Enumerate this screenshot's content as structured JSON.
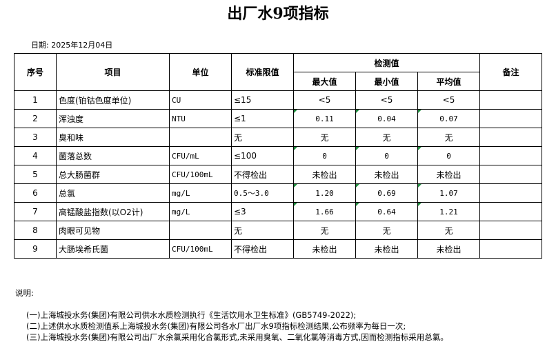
{
  "header": {
    "title": "出厂水9项指标",
    "date": "日期: 2025年12月04日"
  },
  "table": {
    "columns": {
      "no": "序号",
      "item": "项目",
      "unit": "单位",
      "limit": "标准限值",
      "measured": "检测值",
      "remark": "备注"
    },
    "subcolumns": [
      "最大值",
      "最小值",
      "平均值"
    ],
    "rows": [
      {
        "no": "1",
        "item": "色度(铂钴色度单位)",
        "unit": "CU",
        "limit": "≤15",
        "max": "<5",
        "min": "<5",
        "avg": "<5"
      },
      {
        "no": "2",
        "item": "浑浊度",
        "unit": "NTU",
        "limit": "≤1",
        "max": "0.11",
        "min": "0.04",
        "avg": "0.07"
      },
      {
        "no": "3",
        "item": "臭和味",
        "limit": "无",
        "max": "无",
        "min": "无",
        "avg": "无"
      },
      {
        "no": "4",
        "item": "菌落总数",
        "unit": "CFU/mL",
        "limit": "≤100",
        "max": "0",
        "min": "0",
        "avg": "0"
      },
      {
        "no": "5",
        "item": "总大肠菌群",
        "unit": "CFU/100mL",
        "limit": "不得检出",
        "max": "未检出",
        "min": "未检出",
        "avg": "未检出"
      },
      {
        "no": "6",
        "item": "总氯",
        "unit": "mg/L",
        "limit": "0.5～3.0",
        "max": "1.20",
        "min": "0.69",
        "avg": "1.07"
      },
      {
        "no": "7",
        "item": "高锰酸盐指数(以O2计)",
        "unit": "mg/L",
        "limit": "≤3",
        "max": "1.66",
        "min": "0.64",
        "avg": "1.21"
      },
      {
        "no": "8",
        "item": "肉眼可见物",
        "limit": "无",
        "max": "无",
        "min": "无",
        "avg": "无"
      },
      {
        "no": "9",
        "item": "大肠埃希氏菌",
        "unit": "CFU/100mL",
        "limit": "不得检出",
        "max": "未检出",
        "min": "未检出",
        "avg": "未检出"
      }
    ]
  },
  "notes": {
    "heading": "说明:",
    "lines": [
      "(一)上海城投水务(集团)有限公司供水水质检测执行《生活饮用水卫生标准》(GB5749-2022);",
      "(二)上述供水水质检测值系上海城投水务(集团)有限公司各水厂出厂水9项指标检测结果,公布频率为每日一次;",
      "(三)上海城投水务(集团)有限公司出厂水余氯采用化合氯形式,未采用臭氧、二氧化氯等消毒方式,因而检测指标采用总氯。"
    ]
  }
}
